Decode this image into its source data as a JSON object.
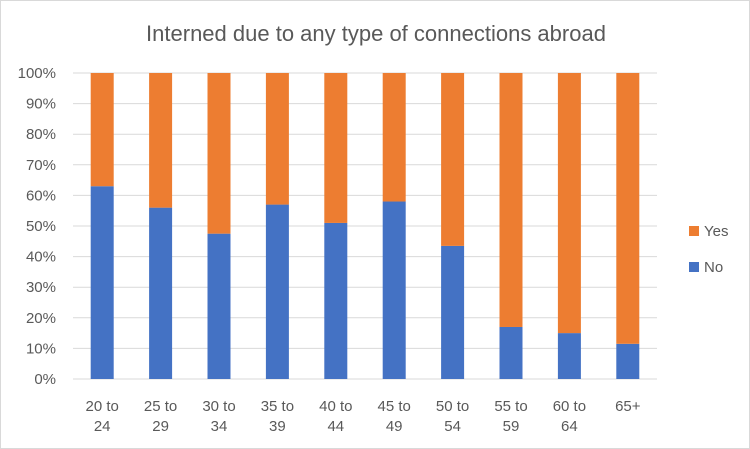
{
  "chart_data": {
    "type": "bar",
    "stacked": "percent",
    "title": "Interned due to any type of connections abroad",
    "xlabel": "",
    "ylabel": "",
    "categories": [
      "20 to 24",
      "25 to 29",
      "30 to 34",
      "35 to 39",
      "40 to 44",
      "45 to 49",
      "50 to 54",
      "55 to 59",
      "60 to 64",
      "65+"
    ],
    "series": [
      {
        "name": "No",
        "color": "#4472c4",
        "values": [
          63,
          56,
          47.5,
          57,
          51,
          58,
          43.5,
          17,
          15,
          11.5
        ]
      },
      {
        "name": "Yes",
        "color": "#ed7d31",
        "values": [
          37,
          44,
          52.5,
          43,
          49,
          42,
          56.5,
          83,
          85,
          88.5
        ]
      }
    ],
    "ylim": [
      0,
      100
    ],
    "yticks": [
      "0%",
      "10%",
      "20%",
      "30%",
      "40%",
      "50%",
      "60%",
      "70%",
      "80%",
      "90%",
      "100%"
    ],
    "grid": true,
    "legend_position": "right",
    "legend_order": [
      "Yes",
      "No"
    ],
    "gridline_color": "#d9d9d9"
  }
}
